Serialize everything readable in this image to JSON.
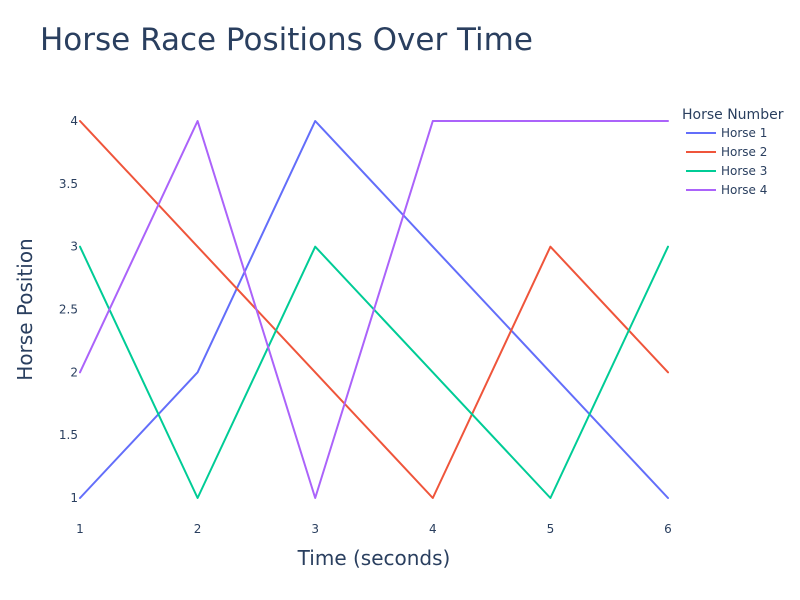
{
  "chart_data": {
    "type": "line",
    "title": "Horse Race Positions Over Time",
    "xlabel": "Time (seconds)",
    "ylabel": "Horse Position",
    "x": [
      1,
      2,
      3,
      4,
      5,
      6
    ],
    "xlim": [
      1,
      6
    ],
    "ylim": [
      1,
      4
    ],
    "xticks": [
      1,
      2,
      3,
      4,
      5,
      6
    ],
    "yticks": [
      1,
      1.5,
      2,
      2.5,
      3,
      3.5,
      4
    ],
    "grid": false,
    "legend_title": "Horse Number",
    "legend_position": "top-right",
    "series": [
      {
        "name": "Horse 1",
        "color": "#636efa",
        "values": [
          1,
          2,
          4,
          3,
          2,
          1
        ]
      },
      {
        "name": "Horse 2",
        "color": "#EF553B",
        "values": [
          4,
          3,
          2,
          1,
          3,
          2
        ]
      },
      {
        "name": "Horse 3",
        "color": "#00cc96",
        "values": [
          3,
          1,
          3,
          2,
          1,
          3
        ]
      },
      {
        "name": "Horse 4",
        "color": "#ab63fa",
        "values": [
          2,
          4,
          1,
          4,
          4,
          4
        ]
      }
    ]
  }
}
